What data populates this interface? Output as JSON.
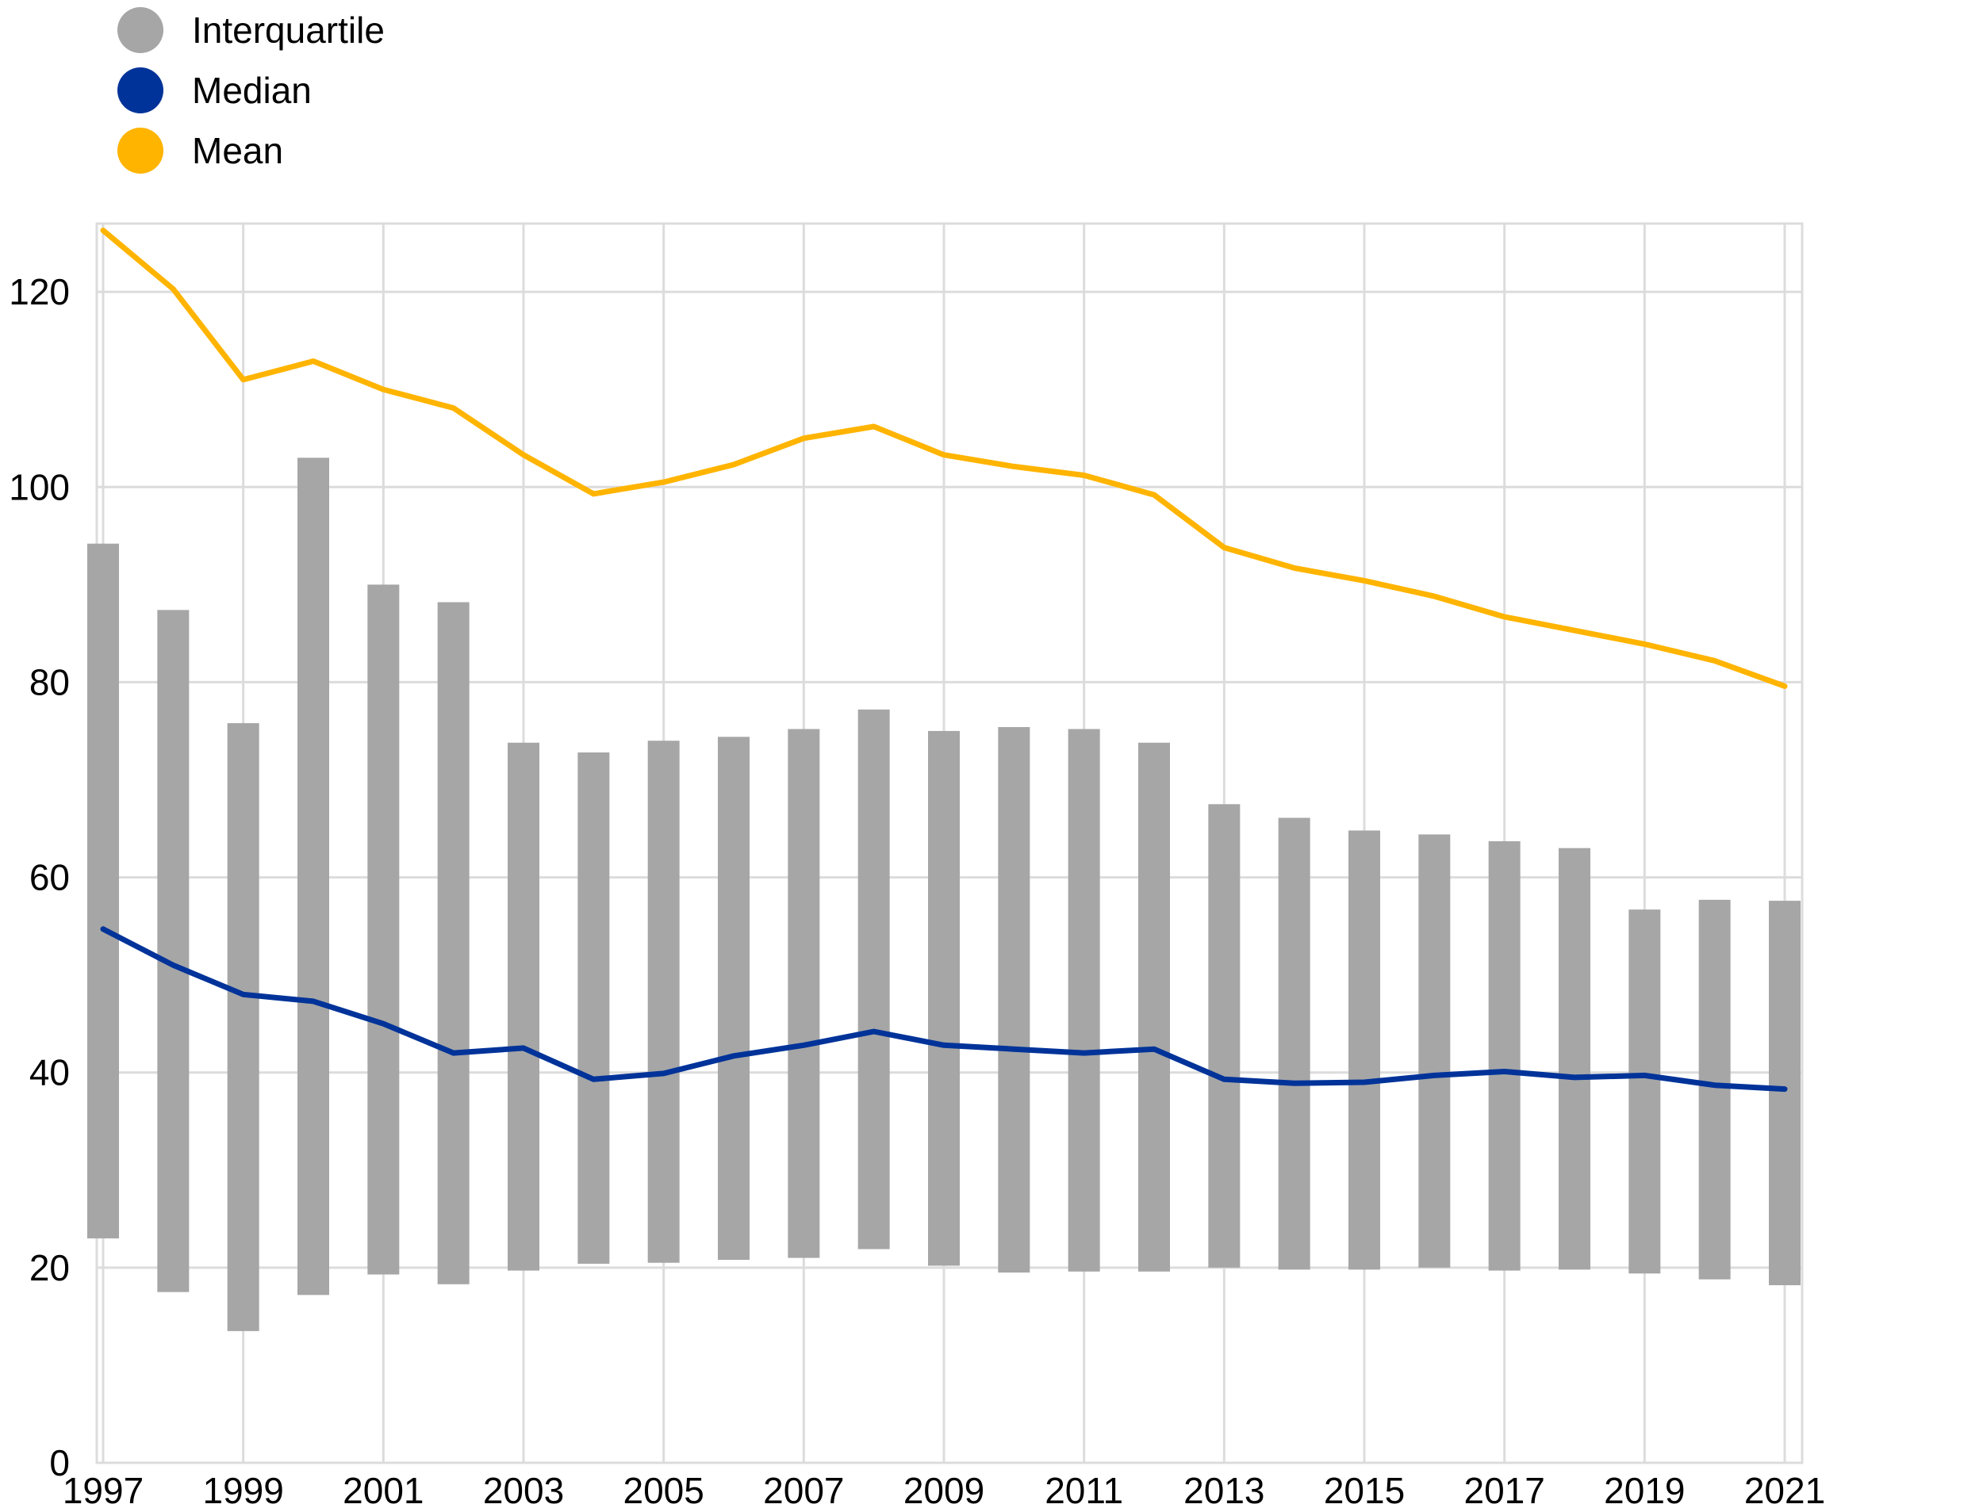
{
  "chart_data": {
    "type": "bar",
    "title": "",
    "xlabel": "",
    "ylabel": "",
    "x": [
      "1997",
      "1998",
      "1999",
      "2000",
      "2001",
      "2002",
      "2003",
      "2004",
      "2005",
      "2006",
      "2007",
      "2008",
      "2009",
      "2010",
      "2011",
      "2012",
      "2013",
      "2014",
      "2015",
      "2016",
      "2017",
      "2018",
      "2019",
      "2020",
      "2021"
    ],
    "x_tick_labels": [
      "1997",
      "1999",
      "2001",
      "2003",
      "2005",
      "2007",
      "2009",
      "2011",
      "2013",
      "2015",
      "2017",
      "2019",
      "2021"
    ],
    "ylim": [
      0,
      127
    ],
    "y_ticks": [
      0,
      20,
      40,
      60,
      80,
      100,
      120
    ],
    "grid": true,
    "legend_position": "top-left",
    "series": [
      {
        "name": "Interquartile",
        "type": "range-bar",
        "color": "#a6a6a6",
        "low": [
          23.0,
          17.5,
          13.5,
          17.2,
          19.3,
          18.3,
          19.7,
          20.4,
          20.5,
          20.8,
          21.0,
          21.9,
          20.2,
          19.5,
          19.6,
          19.6,
          20.0,
          19.8,
          19.8,
          20.0,
          19.7,
          19.8,
          19.4,
          18.8,
          18.2
        ],
        "high": [
          94.2,
          87.4,
          75.8,
          103.0,
          90.0,
          88.2,
          73.8,
          72.8,
          74.0,
          74.4,
          75.2,
          77.2,
          75.0,
          75.4,
          75.2,
          73.8,
          67.5,
          66.1,
          64.8,
          64.4,
          63.7,
          63.0,
          56.7,
          57.7,
          57.6
        ]
      },
      {
        "name": "Median",
        "type": "line",
        "color": "#003399",
        "values": [
          54.7,
          51.0,
          48.0,
          47.3,
          45.0,
          42.0,
          42.5,
          39.3,
          39.9,
          41.7,
          42.8,
          44.2,
          42.8,
          42.4,
          42.0,
          42.4,
          39.3,
          38.9,
          39.0,
          39.7,
          40.1,
          39.5,
          39.7,
          38.7,
          38.3
        ]
      },
      {
        "name": "Mean",
        "type": "line",
        "color": "#ffb400",
        "values": [
          126.3,
          120.3,
          111.0,
          112.9,
          110.0,
          108.1,
          103.3,
          99.3,
          100.5,
          102.3,
          105.0,
          106.2,
          103.3,
          102.1,
          101.2,
          99.2,
          93.8,
          91.7,
          90.4,
          88.8,
          86.7,
          85.3,
          83.9,
          82.2,
          79.6
        ]
      }
    ]
  }
}
